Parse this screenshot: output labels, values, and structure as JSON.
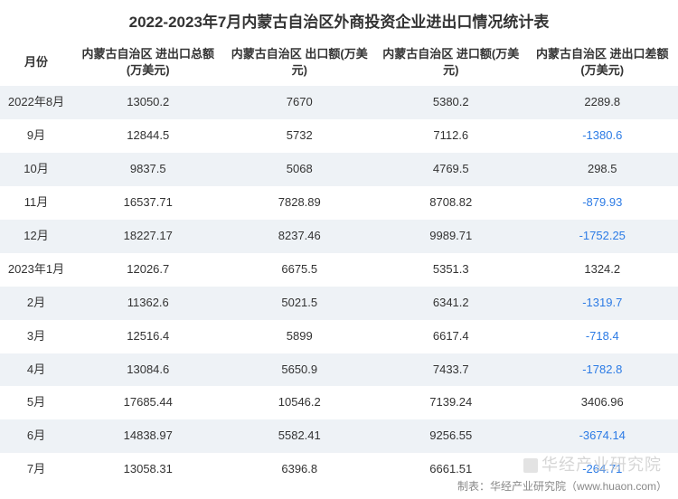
{
  "title": "2022-2023年7月内蒙古自治区外商投资企业进出口情况统计表",
  "columns": [
    "月份",
    "内蒙古自治区\n进出口总额(万美元)",
    "内蒙古自治区\n出口额(万美元)",
    "内蒙古自治区\n进口额(万美元)",
    "内蒙古自治区\n进出口差额(万美元)"
  ],
  "rows": [
    {
      "month": "2022年8月",
      "total": "13050.2",
      "export": "7670",
      "import": "5380.2",
      "diff": "2289.8",
      "neg": false
    },
    {
      "month": "9月",
      "total": "12844.5",
      "export": "5732",
      "import": "7112.6",
      "diff": "-1380.6",
      "neg": true
    },
    {
      "month": "10月",
      "total": "9837.5",
      "export": "5068",
      "import": "4769.5",
      "diff": "298.5",
      "neg": false
    },
    {
      "month": "11月",
      "total": "16537.71",
      "export": "7828.89",
      "import": "8708.82",
      "diff": "-879.93",
      "neg": true
    },
    {
      "month": "12月",
      "total": "18227.17",
      "export": "8237.46",
      "import": "9989.71",
      "diff": "-1752.25",
      "neg": true
    },
    {
      "month": "2023年1月",
      "total": "12026.7",
      "export": "6675.5",
      "import": "5351.3",
      "diff": "1324.2",
      "neg": false
    },
    {
      "month": "2月",
      "total": "11362.6",
      "export": "5021.5",
      "import": "6341.2",
      "diff": "-1319.7",
      "neg": true
    },
    {
      "month": "3月",
      "total": "12516.4",
      "export": "5899",
      "import": "6617.4",
      "diff": "-718.4",
      "neg": true
    },
    {
      "month": "4月",
      "total": "13084.6",
      "export": "5650.9",
      "import": "7433.7",
      "diff": "-1782.8",
      "neg": true
    },
    {
      "month": "5月",
      "total": "17685.44",
      "export": "10546.2",
      "import": "7139.24",
      "diff": "3406.96",
      "neg": false
    },
    {
      "month": "6月",
      "total": "14838.97",
      "export": "5582.41",
      "import": "9256.55",
      "diff": "-3674.14",
      "neg": true
    },
    {
      "month": "7月",
      "total": "13058.31",
      "export": "6396.8",
      "import": "6661.51",
      "diff": "-264.71",
      "neg": true
    }
  ],
  "watermark": "华经产业研究院",
  "footer": "制表：华经产业研究院（www.huaon.com）",
  "style": {
    "neg_color": "#2c7be5",
    "pos_color": "#333333",
    "row_odd_bg": "#eef2f6",
    "row_even_bg": "#ffffff",
    "title_fontsize": 17,
    "header_fontsize": 13,
    "cell_fontsize": 13,
    "footer_fontsize": 12
  }
}
